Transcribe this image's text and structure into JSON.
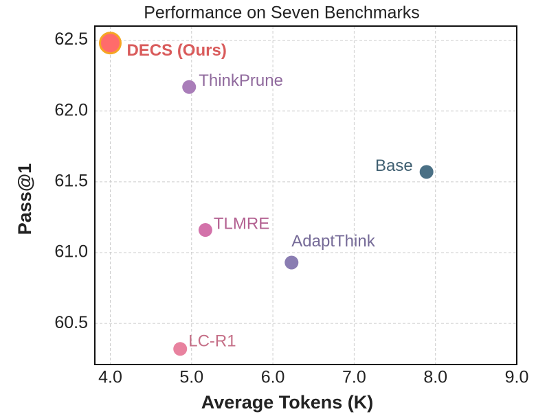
{
  "chart_data": {
    "type": "scatter",
    "title": "Performance on Seven Benchmarks",
    "x_label": "Average Tokens (K)",
    "y_label": "Pass@1",
    "series": [
      {
        "name": "DECS (Ours)",
        "color": "#ff6b6b",
        "x": [
          4.0
        ],
        "values": [
          62.48
        ]
      },
      {
        "name": "ThinkPrune",
        "color": "#a97db9",
        "x": [
          4.97
        ],
        "values": [
          62.17
        ]
      },
      {
        "name": "Base",
        "color": "#4a7085",
        "x": [
          7.89
        ],
        "values": [
          61.57
        ]
      },
      {
        "name": "TLMRE",
        "color": "#d372aa",
        "x": [
          5.17
        ],
        "values": [
          61.16
        ]
      },
      {
        "name": "AdaptThink",
        "color": "#8a7db2",
        "x": [
          6.23
        ],
        "values": [
          60.93
        ]
      },
      {
        "name": "LC-R1",
        "color": "#e8829f",
        "x": [
          4.86
        ],
        "values": [
          60.32
        ]
      }
    ],
    "xlim": [
      3.81,
      9.0
    ],
    "xticks": [
      {
        "value": 4,
        "label": "4.0"
      },
      {
        "value": 5,
        "label": "5.0"
      },
      {
        "value": 6,
        "label": "6.0"
      },
      {
        "value": 7,
        "label": "7.0"
      },
      {
        "value": 8,
        "label": "8.0"
      },
      {
        "value": 9,
        "label": "9.0"
      }
    ],
    "ylim": [
      60.21,
      62.6
    ],
    "yticks": [
      60.5,
      {
        "value": 61,
        "label": "61.0"
      },
      61.5,
      {
        "value": 62,
        "label": "62.0"
      },
      62.5
    ],
    "grid": true
  }
}
